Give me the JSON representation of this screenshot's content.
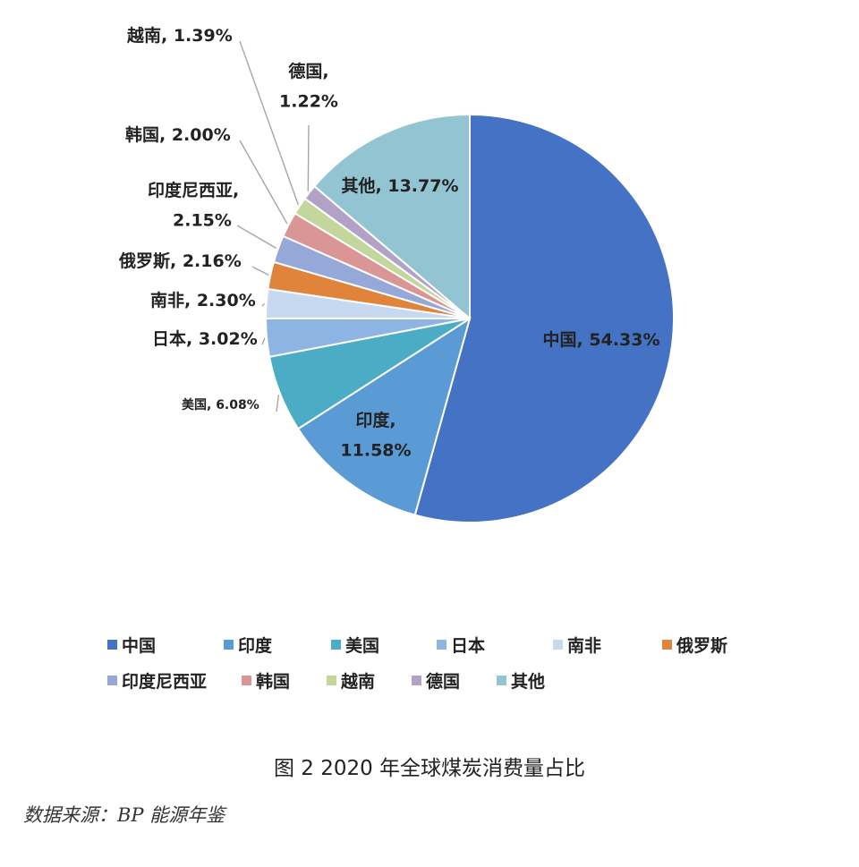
{
  "chart_data": {
    "type": "pie",
    "unit": "%",
    "slices": [
      {
        "label": "中国",
        "value": 54.33,
        "text": "中国, 54.33%",
        "color": "#4472c4"
      },
      {
        "label": "印度",
        "value": 11.58,
        "text": "印度, 11.58%",
        "color": "#5b9bd5"
      },
      {
        "label": "美国",
        "value": 6.08,
        "text": "美国, 6.08%",
        "color": "#4bacc6"
      },
      {
        "label": "日本",
        "value": 3.02,
        "text": "日本, 3.02%",
        "color": "#8eb4e3"
      },
      {
        "label": "南非",
        "value": 2.3,
        "text": "南非, 2.30%",
        "color": "#c6d9f1"
      },
      {
        "label": "俄罗斯",
        "value": 2.16,
        "text": "俄罗斯, 2.16%",
        "color": "#e0843c"
      },
      {
        "label": "印度尼西亚",
        "value": 2.15,
        "text": "印度尼西亚, 2.15%",
        "color": "#95a8d8"
      },
      {
        "label": "韩国",
        "value": 2.0,
        "text": "韩国, 2.00%",
        "color": "#d99694"
      },
      {
        "label": "越南",
        "value": 1.39,
        "text": "越南, 1.39%",
        "color": "#c3d69b"
      },
      {
        "label": "德国",
        "value": 1.22,
        "text": "德国, 1.22%",
        "color": "#b3a2c7"
      },
      {
        "label": "其他",
        "value": 13.77,
        "text": "其他, 13.77%",
        "color": "#93c4d2"
      }
    ],
    "legend_position": "bottom"
  },
  "caption": "图 2 2020 年全球煤炭消费量占比",
  "source": "数据来源：BP 能源年鉴"
}
